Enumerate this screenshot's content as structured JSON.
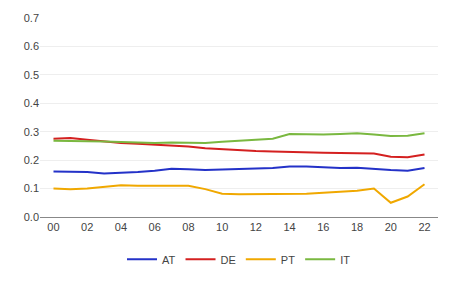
{
  "chart_data": {
    "type": "line",
    "x": [
      2000,
      2001,
      2002,
      2003,
      2004,
      2005,
      2006,
      2007,
      2008,
      2009,
      2010,
      2011,
      2012,
      2013,
      2014,
      2015,
      2016,
      2017,
      2018,
      2019,
      2020,
      2021,
      2022
    ],
    "series": [
      {
        "name": "AT",
        "color": "#2432c8",
        "values": [
          0.16,
          0.16,
          0.158,
          0.153,
          0.155,
          0.158,
          0.163,
          0.17,
          0.168,
          0.165,
          0.167,
          0.168,
          0.17,
          0.172,
          0.178,
          0.178,
          0.175,
          0.172,
          0.173,
          0.168,
          0.165,
          0.163,
          0.172
        ]
      },
      {
        "name": "DE",
        "color": "#d42020",
        "values": [
          0.275,
          0.278,
          0.272,
          0.265,
          0.26,
          0.258,
          0.255,
          0.252,
          0.248,
          0.242,
          0.238,
          0.235,
          0.232,
          0.23,
          0.228,
          0.228,
          0.226,
          0.225,
          0.225,
          0.223,
          0.212,
          0.21,
          0.22
        ]
      },
      {
        "name": "PT",
        "color": "#f0a800",
        "values": [
          0.1,
          0.098,
          0.1,
          0.105,
          0.112,
          0.11,
          0.11,
          0.108,
          0.11,
          0.098,
          0.082,
          0.08,
          0.08,
          0.08,
          0.082,
          0.082,
          0.085,
          0.088,
          0.092,
          0.1,
          0.05,
          0.072,
          0.115
        ]
      },
      {
        "name": "IT",
        "color": "#7ab840",
        "values": [
          0.268,
          0.268,
          0.268,
          0.266,
          0.264,
          0.262,
          0.26,
          0.262,
          0.26,
          0.26,
          0.265,
          0.268,
          0.272,
          0.275,
          0.292,
          0.29,
          0.29,
          0.292,
          0.295,
          0.29,
          0.285,
          0.286,
          0.295
        ]
      }
    ],
    "xlim": [
      1999.2,
      2022.8
    ],
    "xticks": [
      {
        "value": 2000,
        "label": "00"
      },
      {
        "value": 2002,
        "label": "02"
      },
      {
        "value": 2004,
        "label": "04"
      },
      {
        "value": 2006,
        "label": "06"
      },
      {
        "value": 2008,
        "label": "08"
      },
      {
        "value": 2010,
        "label": "10"
      },
      {
        "value": 2012,
        "label": "12"
      },
      {
        "value": 2014,
        "label": "14"
      },
      {
        "value": 2016,
        "label": "16"
      },
      {
        "value": 2018,
        "label": "18"
      },
      {
        "value": 2020,
        "label": "20"
      },
      {
        "value": 2022,
        "label": "22"
      }
    ],
    "ylim": [
      0.0,
      0.7
    ],
    "yticks": [
      {
        "value": 0.0,
        "label": "0.0"
      },
      0.1,
      0.2,
      0.3,
      0.4,
      0.5,
      0.6,
      0.7
    ],
    "grid": "y",
    "legend": "bottom"
  }
}
